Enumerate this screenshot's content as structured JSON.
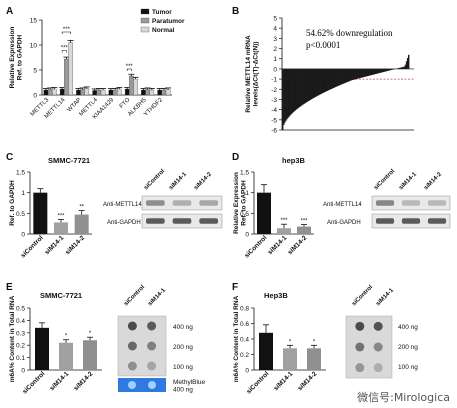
{
  "colors": {
    "tumor": "#111111",
    "paratumor": "#9a9a9a",
    "normal": "#d8d8d8",
    "control": "#111111",
    "si1": "#a0a0a0",
    "si2": "#909090",
    "threshold": "#d23b3b",
    "methyl": "#2e7ae0"
  },
  "watermark": "微信号:Mirologica",
  "chart_data": [
    {
      "panel": "A",
      "type": "bar",
      "ylabel": "Relative Expression\nRef. to GAPDH",
      "ylim": [
        0,
        15
      ],
      "yticks": [
        0,
        5,
        10,
        15
      ],
      "categories": [
        "METTL3",
        "METTL14",
        "WTAP",
        "METTL4",
        "KIAA1429",
        "FTO",
        "ALKBH5",
        "YTHDF2"
      ],
      "legend": [
        "Tumor",
        "Paratumor",
        "Normal"
      ],
      "series": [
        {
          "name": "Tumor",
          "values": [
            1.0,
            1.2,
            1.0,
            0.9,
            1.0,
            1.2,
            1.0,
            1.0
          ]
        },
        {
          "name": "Paratumor",
          "values": [
            1.1,
            7.2,
            1.1,
            1.0,
            1.0,
            3.8,
            1.1,
            1.0
          ]
        },
        {
          "name": "Normal",
          "values": [
            1.2,
            10.5,
            1.3,
            1.0,
            1.2,
            3.2,
            1.0,
            1.1
          ]
        }
      ],
      "annotations": [
        "***",
        "***",
        "***",
        "***"
      ]
    },
    {
      "panel": "B",
      "type": "bar",
      "ylabel": "Relative METTL14 mRNA\nlevels(ΔCt(T)-ΔCt(N))",
      "ylim": [
        -6,
        5
      ],
      "yticks": [
        5,
        4,
        3,
        2,
        1,
        0,
        -1,
        -2,
        -3,
        -4,
        -5,
        -6
      ],
      "text": [
        "54.62% downregulation",
        "p<0.0001"
      ],
      "threshold": -1
    },
    {
      "panel": "C",
      "type": "bar",
      "title": "SMMC-7721",
      "ylabel": "Ref. to GAPDH",
      "ylim": [
        0,
        1.5
      ],
      "yticks": [
        0.0,
        0.5,
        1.0,
        1.5
      ],
      "categories": [
        "siControl",
        "siM14-1",
        "siM14-2"
      ],
      "values": [
        1.0,
        0.28,
        0.47
      ],
      "annotations": [
        "",
        "***",
        "**"
      ],
      "blot_labels": [
        "siControl",
        "siM14-1",
        "siM14-2",
        "Anti-METTL14",
        "Anti-GAPDH"
      ]
    },
    {
      "panel": "D",
      "type": "bar",
      "title": "hep3B",
      "ylabel": "Relative Expression\nRef. to GAPDH",
      "ylim": [
        0,
        1.5
      ],
      "yticks": [
        0.0,
        0.5,
        1.0,
        1.5
      ],
      "categories": [
        "siControl",
        "siM14-1",
        "siM14-2"
      ],
      "values": [
        1.0,
        0.14,
        0.18
      ],
      "annotations": [
        "",
        "***",
        "***"
      ],
      "blot_labels": [
        "siControl",
        "siM14-1",
        "siM14-2",
        "Anti-METTL14",
        "Anti-GAPDH"
      ]
    },
    {
      "panel": "E",
      "type": "bar",
      "title": "SMMC-7721",
      "ylabel": "m6A% Content in Total RNA",
      "ylim": [
        0,
        0.5
      ],
      "yticks": [
        0.0,
        0.1,
        0.2,
        0.3,
        0.4,
        0.5
      ],
      "categories": [
        "siControl",
        "siM14-1",
        "siM14-2"
      ],
      "values": [
        0.34,
        0.22,
        0.24
      ],
      "annotations": [
        "",
        "*",
        "*"
      ],
      "dot_labels": [
        "siControl",
        "siM14-1",
        "400 ng",
        "200 ng",
        "100 ng",
        "MethylBlue\n400 ng"
      ]
    },
    {
      "panel": "F",
      "type": "bar",
      "title": "Hep3B",
      "ylabel": "m6A% Content in Total RNA",
      "ylim": [
        0,
        0.8
      ],
      "yticks": [
        0.0,
        0.2,
        0.4,
        0.6,
        0.8
      ],
      "categories": [
        "siControl",
        "siM14-1",
        "siM14-2"
      ],
      "values": [
        0.48,
        0.28,
        0.28
      ],
      "annotations": [
        "",
        "*",
        "*"
      ],
      "dot_labels": [
        "siControl",
        "siM14-1",
        "400 ng",
        "200 ng",
        "100 ng"
      ]
    }
  ]
}
